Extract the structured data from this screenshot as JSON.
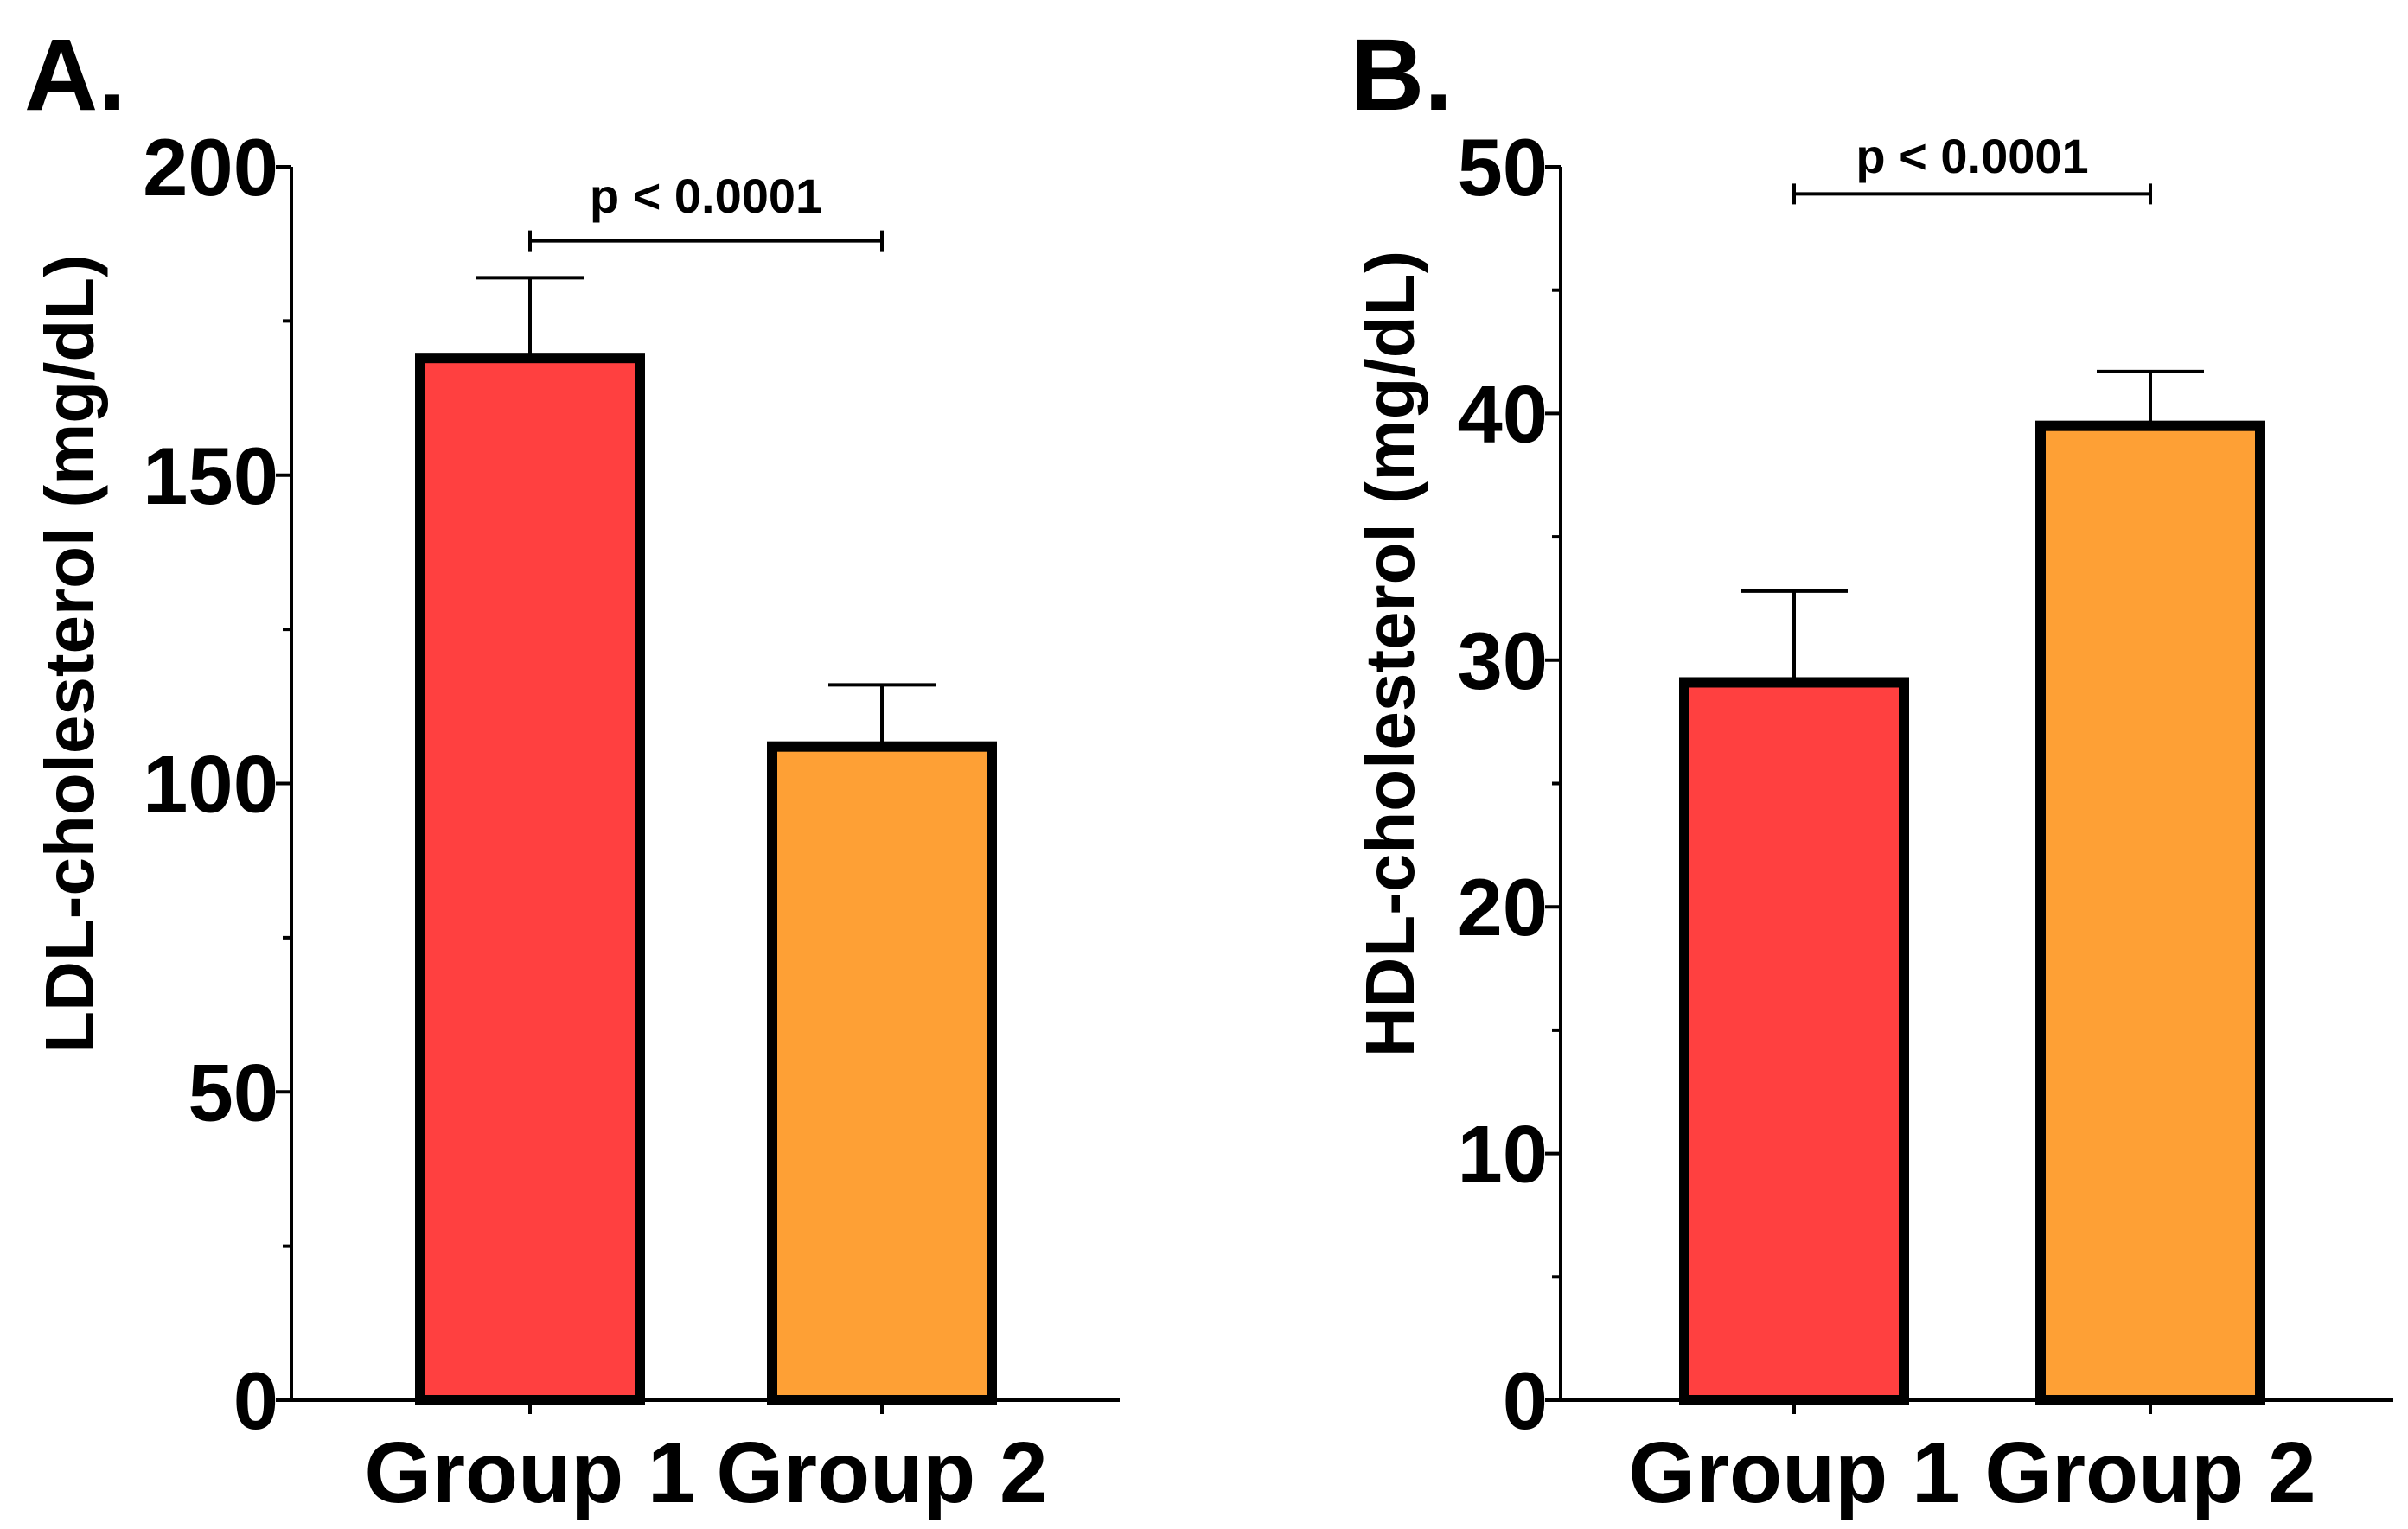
{
  "figure": {
    "panels": [
      "A.",
      "B."
    ]
  },
  "chart_data": [
    {
      "panel_label": "A.",
      "type": "bar",
      "categories": [
        "Group 1",
        "Group 2"
      ],
      "values": [
        169,
        106
      ],
      "error_upper": [
        182,
        116
      ],
      "colors": [
        "#ff4040",
        "#fea035"
      ],
      "ylabel": "LDL-cholesterol (mg/dL)",
      "xlabel": "",
      "ylim": [
        0,
        200
      ],
      "yticks": [
        0,
        50,
        100,
        150,
        200
      ],
      "ytick_labels": [
        "0",
        "50",
        "100",
        "150",
        "200"
      ],
      "minor_tick_step": 25,
      "significance": {
        "label": "p < 0.0001",
        "level": 188,
        "from": 0,
        "to": 1
      }
    },
    {
      "panel_label": "B.",
      "type": "bar",
      "categories": [
        "Group 1",
        "Group 2"
      ],
      "values": [
        29.1,
        39.5
      ],
      "error_upper": [
        32.8,
        41.7
      ],
      "colors": [
        "#ff4040",
        "#fea035"
      ],
      "ylabel": "HDL-cholesterol (mg/dL)",
      "xlabel": "",
      "ylim": [
        0,
        50
      ],
      "yticks": [
        0,
        10,
        20,
        30,
        40,
        50
      ],
      "ytick_labels": [
        "0",
        "10",
        "20",
        "30",
        "40",
        "50"
      ],
      "minor_tick_step": 5,
      "significance": {
        "label": "p < 0.0001",
        "level": 48.9,
        "from": 0,
        "to": 1
      }
    }
  ]
}
